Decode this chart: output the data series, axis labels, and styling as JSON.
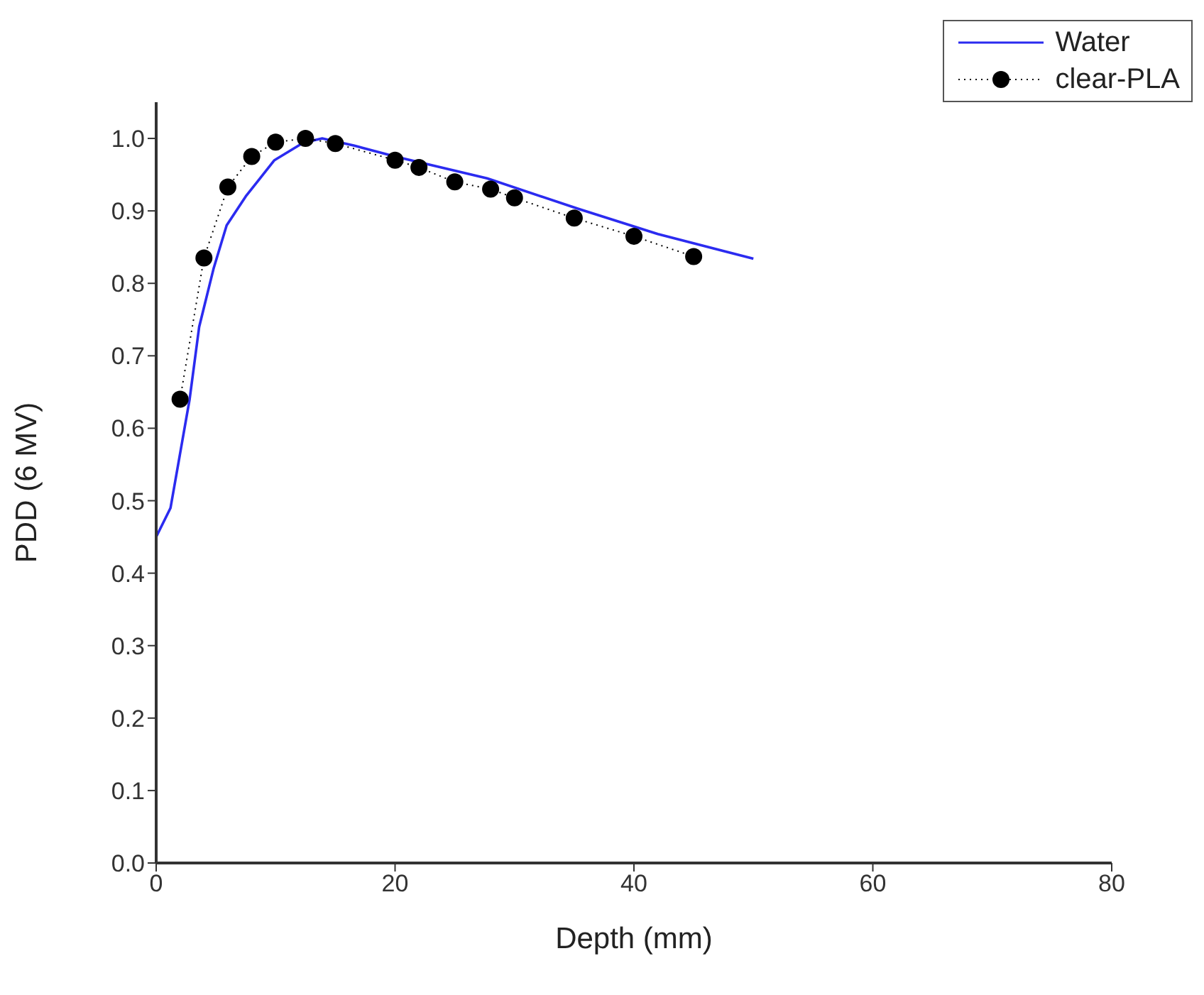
{
  "chart_data": {
    "type": "line",
    "xlabel": "Depth (mm)",
    "ylabel": "PDD (6 MV)",
    "xlim": [
      0,
      80
    ],
    "xticks": [
      0,
      20,
      40,
      60,
      80
    ],
    "ylim": [
      0,
      1.05
    ],
    "yticks": [
      {
        "value": 0,
        "label": "0.0"
      },
      0.1,
      0.2,
      0.3,
      0.4,
      0.5,
      0.6,
      0.7,
      0.8,
      0.9,
      {
        "value": 1,
        "label": "1.0"
      }
    ],
    "legend": "top right",
    "series": [
      {
        "name": "Water",
        "color": "#2b2bf0",
        "marker": "none",
        "line_style": "solid",
        "x": [
          0,
          1.2,
          2.8,
          3.6,
          4.8,
          5.9,
          7.5,
          9.9,
          12.3,
          13.9,
          16.6,
          20,
          27.7,
          35.3,
          42,
          50
        ],
        "values": [
          0.45,
          0.49,
          0.64,
          0.74,
          0.82,
          0.88,
          0.92,
          0.97,
          0.994,
          1.0,
          0.99,
          0.975,
          0.945,
          0.903,
          0.868,
          0.834
        ]
      },
      {
        "name": "clear-PLA",
        "color": "#000000",
        "marker": "circle",
        "line_style": "dotted",
        "x": [
          2,
          4,
          6,
          8,
          10,
          12.5,
          15,
          20,
          22,
          25,
          28,
          30,
          35,
          40,
          45
        ],
        "values": [
          0.64,
          0.835,
          0.933,
          0.975,
          0.995,
          1.0,
          0.993,
          0.97,
          0.96,
          0.94,
          0.93,
          0.918,
          0.89,
          0.865,
          0.837
        ]
      }
    ]
  }
}
